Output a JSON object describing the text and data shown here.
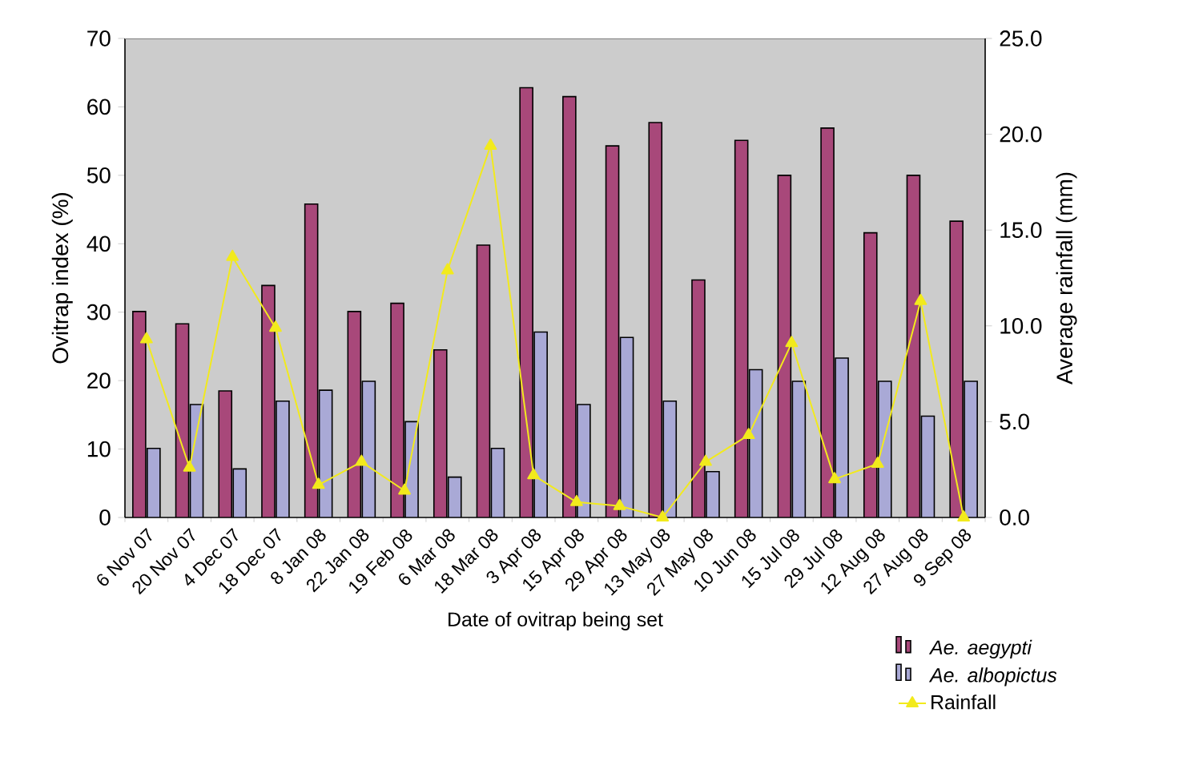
{
  "chart_data": {
    "type": "bar",
    "xlabel": "Date of ovitrap being set",
    "ylabel": "Ovitrap index (%)",
    "y2label": "Average rainfall (mm)",
    "categories": [
      "6 Nov 07",
      "20 Nov 07",
      "4 Dec 07",
      "18 Dec 07",
      "8 Jan 08",
      "22 Jan 08",
      "19 Feb 08",
      "6 Mar 08",
      "18 Mar 08",
      "3 Apr 08",
      "15 Apr 08",
      "29 Apr 08",
      "13 May 08",
      "27 May 08",
      "10 Jun 08",
      "15 Jul 08",
      "29 Jul 08",
      "12 Aug 08",
      "27 Aug 08",
      "9 Sep 08"
    ],
    "series": [
      {
        "name": "Ae. aegypti",
        "color": "#a8487a",
        "values": [
          30.1,
          28.3,
          18.5,
          33.9,
          45.8,
          30.1,
          31.3,
          24.5,
          39.8,
          62.8,
          61.5,
          54.3,
          57.7,
          34.7,
          55.1,
          50.0,
          56.9,
          41.6,
          50.0,
          43.3
        ]
      },
      {
        "name": "Ae. albopictus",
        "color": "#a9a9d6",
        "values": [
          10.1,
          16.5,
          7.1,
          17.0,
          18.6,
          19.9,
          14.0,
          5.9,
          10.1,
          27.1,
          16.5,
          26.3,
          17.0,
          6.7,
          21.6,
          19.9,
          23.3,
          19.9,
          14.8,
          19.9
        ]
      },
      {
        "name": "Rainfall",
        "color": "#f2ea1c",
        "type": "line",
        "axis": "y2",
        "marker": "triangle",
        "values": [
          9.3,
          2.6,
          13.6,
          9.9,
          1.7,
          2.9,
          1.4,
          12.9,
          19.4,
          2.2,
          0.8,
          0.6,
          0.0,
          2.9,
          4.3,
          9.1,
          2.0,
          2.8,
          11.3,
          0.0
        ]
      }
    ],
    "ylim": [
      0,
      70
    ],
    "yticks": [
      0,
      10,
      20,
      30,
      40,
      50,
      60,
      70
    ],
    "y2lim": [
      0,
      25
    ],
    "y2ticks": [
      {
        "value": 0,
        "label": "0.0"
      },
      {
        "value": 5,
        "label": "5.0"
      },
      {
        "value": 10,
        "label": "10.0"
      },
      {
        "value": 15,
        "label": "15.0"
      },
      {
        "value": 20,
        "label": "20.0"
      },
      {
        "value": 25,
        "label": "25.0"
      }
    ],
    "legend": "bottom right"
  }
}
